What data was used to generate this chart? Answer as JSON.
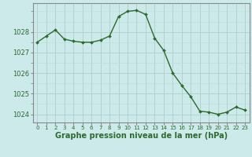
{
  "hours": [
    0,
    1,
    2,
    3,
    4,
    5,
    6,
    7,
    8,
    9,
    10,
    11,
    12,
    13,
    14,
    15,
    16,
    17,
    18,
    19,
    20,
    21,
    22,
    23
  ],
  "pressure": [
    1027.5,
    1027.8,
    1028.1,
    1027.65,
    1027.55,
    1027.5,
    1027.5,
    1027.6,
    1027.8,
    1028.75,
    1029.0,
    1029.05,
    1028.85,
    1027.7,
    1027.1,
    1026.0,
    1025.4,
    1024.85,
    1024.15,
    1024.1,
    1024.0,
    1024.1,
    1024.35,
    1024.2
  ],
  "line_color": "#2d6a2d",
  "marker": "D",
  "marker_size": 2.0,
  "bg_color": "#cceaea",
  "grid_color_major": "#aac8c8",
  "grid_color_minor": "#bbdada",
  "xlabel": "Graphe pression niveau de la mer (hPa)",
  "xlabel_color": "#2d6a2d",
  "xlabel_fontsize": 7,
  "ylim": [
    1023.6,
    1029.4
  ],
  "yticks": [
    1024,
    1025,
    1026,
    1027,
    1028
  ],
  "ytick_fontsize": 6,
  "xtick_fontsize": 5,
  "spine_color": "#888888",
  "tick_color": "#2d6a2d"
}
